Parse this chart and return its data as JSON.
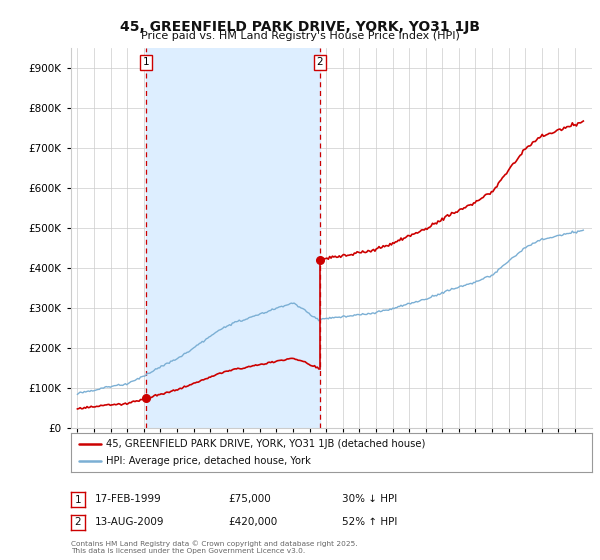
{
  "title": "45, GREENFIELD PARK DRIVE, YORK, YO31 1JB",
  "subtitle": "Price paid vs. HM Land Registry's House Price Index (HPI)",
  "legend_line1": "45, GREENFIELD PARK DRIVE, YORK, YO31 1JB (detached house)",
  "legend_line2": "HPI: Average price, detached house, York",
  "annotation1_date": "17-FEB-1999",
  "annotation1_price": "£75,000",
  "annotation1_hpi": "30% ↓ HPI",
  "annotation2_date": "13-AUG-2009",
  "annotation2_price": "£420,000",
  "annotation2_hpi": "52% ↑ HPI",
  "footnote": "Contains HM Land Registry data © Crown copyright and database right 2025.\nThis data is licensed under the Open Government Licence v3.0.",
  "price_color": "#cc0000",
  "hpi_color": "#7bafd4",
  "shade_color": "#ddeeff",
  "vline_color": "#cc0000",
  "background_color": "#ffffff",
  "grid_color": "#cccccc",
  "ylim": [
    0,
    950000
  ],
  "yticks": [
    0,
    100000,
    200000,
    300000,
    400000,
    500000,
    600000,
    700000,
    800000,
    900000
  ],
  "sale1_year": 1999.12,
  "sale1_price": 75000,
  "sale2_year": 2009.62,
  "sale2_price": 420000
}
